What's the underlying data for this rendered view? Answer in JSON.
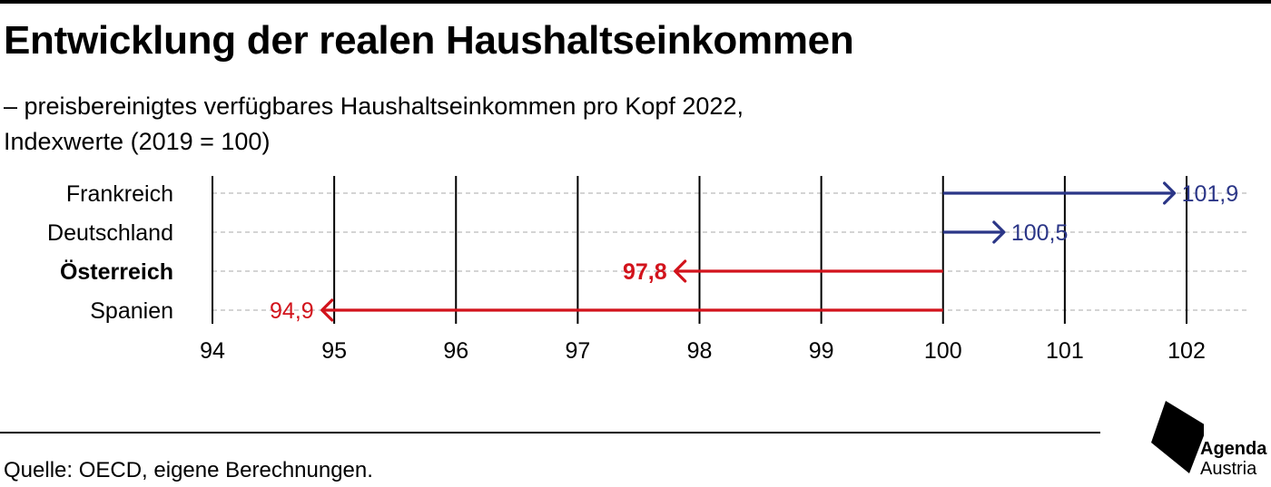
{
  "header": {
    "title": "Entwicklung der realen Haushaltseinkommen",
    "subtitle_line1": "– preisbereinigtes verfügbares Haushaltseinkommen pro Kopf 2022,",
    "subtitle_line2": "Indexwerte (2019 = 100)"
  },
  "chart_data": {
    "type": "bar",
    "orientation": "horizontal-arrows",
    "baseline": 100,
    "categories": [
      "Frankreich",
      "Deutschland",
      "Österreich",
      "Spanien"
    ],
    "values": [
      101.9,
      100.5,
      97.8,
      94.9
    ],
    "value_labels": [
      "101,9",
      "100,5",
      "97,8",
      "94,9"
    ],
    "highlighted_category": "Österreich",
    "xlim": [
      94,
      102
    ],
    "xticks": [
      94,
      95,
      96,
      97,
      98,
      99,
      100,
      101,
      102
    ],
    "xtick_labels": [
      "94",
      "95",
      "96",
      "97",
      "98",
      "99",
      "100",
      "101",
      "102"
    ],
    "grid": true,
    "colors": {
      "increase": "#2B3687",
      "decrease": "#D2131C",
      "gridline": "#000000",
      "row_dash": "#BBBBBB"
    }
  },
  "footer": {
    "source": "Quelle: OECD, eigene Berechnungen."
  },
  "logo": {
    "line1": "Agenda",
    "line2": "Austria"
  }
}
